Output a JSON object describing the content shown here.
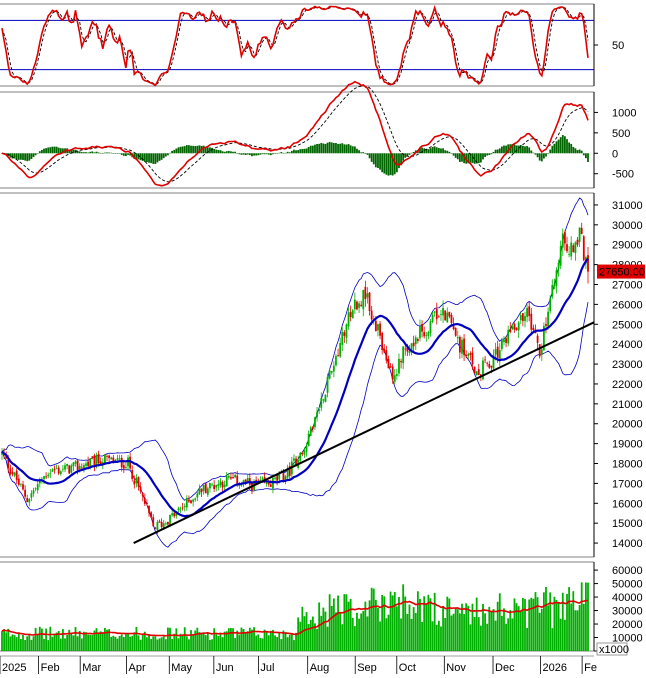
{
  "chart_data": {
    "type": "candlestick",
    "x_labels": [
      "2025",
      "Feb",
      "Mar",
      "Apr",
      "May",
      "Jun",
      "Jul",
      "Aug",
      "Sep",
      "Oct",
      "Nov",
      "Dec",
      "2026",
      "Fe"
    ],
    "panels": {
      "stochastic": {
        "ticks": [
          50
        ],
        "ylim": [
          0,
          100
        ],
        "levels": [
          80,
          20
        ],
        "colors": {
          "main": "#e00000",
          "signal": "#000000",
          "levels": "#0000c0"
        }
      },
      "macd": {
        "ticks": [
          1000,
          500,
          0,
          -500
        ],
        "ylim": [
          -850,
          1500
        ],
        "colors": {
          "macd": "#e00000",
          "signal": "#000000",
          "histogram": "#006600"
        }
      },
      "price": {
        "ticks": [
          31000,
          30000,
          29000,
          28000,
          27000,
          26000,
          25000,
          24000,
          23000,
          22000,
          21000,
          20000,
          19000,
          18000,
          17000,
          16000,
          15000,
          14000
        ],
        "ylim": [
          13300,
          31600
        ],
        "last_price_label": "27650.00",
        "trendline": {
          "from": [
            0.225,
            14000
          ],
          "to": [
            1.0,
            25100
          ]
        },
        "colors": {
          "ma": "#0000c0",
          "bands": "#0000c0",
          "up": "#00b000",
          "down": "#e00000",
          "trendline": "#000000",
          "last_price_bg": "#e00000"
        }
      },
      "volume": {
        "ticks": [
          60000,
          50000,
          40000,
          30000,
          20000,
          10000,
          0
        ],
        "ylim": [
          0,
          66000
        ],
        "unit_label": "x1000",
        "colors": {
          "bars": "#00b000",
          "ma": "#e00000"
        }
      }
    }
  }
}
